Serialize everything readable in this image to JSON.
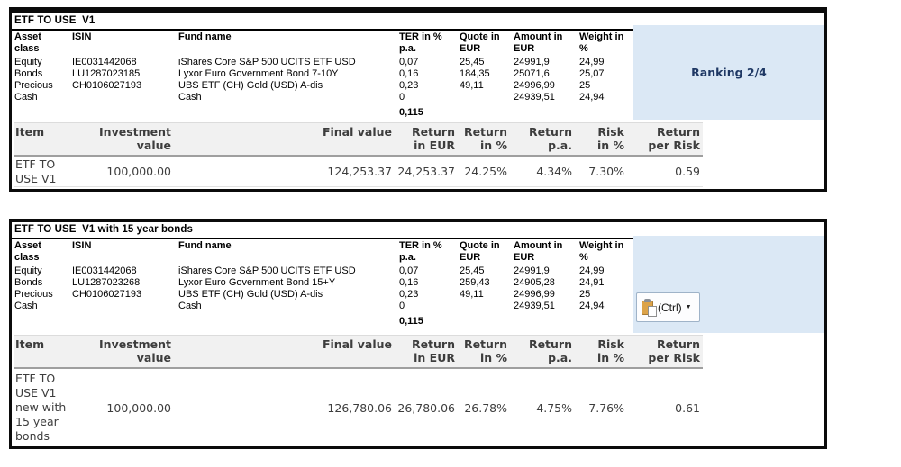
{
  "colors": {
    "table_border": "#0b0b0b",
    "side_panel_blue": "#dbe8f5",
    "summary_band_grey": "#f1f1f1",
    "summary_text": "#3d3d3d",
    "ranking_text": "#1f3864",
    "paste_clipboard_tan": "#dca349"
  },
  "paste_button": {
    "label": "(Ctrl)",
    "caret": "▼"
  },
  "tables": [
    {
      "title": "ETF TO USE  V1",
      "ranking_label": "Ranking 2/4",
      "asset_grid": {
        "headers": {
          "asset_class": "Asset\nclass",
          "isin": "ISIN",
          "fund_name": "Fund name",
          "ter": "TER in %\np.a.",
          "quote": "Quote in\nEUR",
          "amount": "Amount in\nEUR",
          "weight": "Weight in\n%"
        },
        "rows": [
          {
            "asset_class": "Equity",
            "isin": "IE0031442068",
            "fund_name": "iShares Core S&P 500 UCITS ETF USD",
            "ter": "0,07",
            "quote": "25,45",
            "amount": "24991,9",
            "weight": "24,99"
          },
          {
            "asset_class": "Bonds",
            "isin": "LU1287023185",
            "fund_name": "Lyxor Euro Government Bond 7-10Y",
            "ter": "0,16",
            "quote": "184,35",
            "amount": "25071,6",
            "weight": "25,07"
          },
          {
            "asset_class": "Precious",
            "isin": "CH0106027193",
            "fund_name": "UBS ETF (CH) Gold (USD) A-dis",
            "ter": "0,23",
            "quote": "49,11",
            "amount": "24996,99",
            "weight": "25"
          },
          {
            "asset_class": "Cash",
            "isin": "",
            "fund_name": "Cash",
            "ter": "0",
            "quote": "",
            "amount": "24939,51",
            "weight": "24,94"
          }
        ],
        "ter_sum": "0,115"
      },
      "summary": {
        "headers": {
          "item": "Item",
          "investment": "Investment\nvalue",
          "final": "Final value",
          "return_eur": "Return\nin EUR",
          "return_pct": "Return\nin %",
          "return_pa": "Return\np.a.",
          "risk": "Risk\nin %",
          "return_per_risk": "Return\nper Risk"
        },
        "row": {
          "item": "ETF TO\nUSE V1",
          "investment": "100,000.00",
          "final": "124,253.37",
          "return_eur": "24,253.37",
          "return_pct": "24.25%",
          "return_pa": "4.34%",
          "risk": "7.30%",
          "return_per_risk": "0.59"
        }
      }
    },
    {
      "title": "ETF TO USE  V1 with 15 year bonds",
      "asset_grid": {
        "headers": {
          "asset_class": "Asset\nclass",
          "isin": "ISIN",
          "fund_name": "Fund name",
          "ter": "TER in %\np.a.",
          "quote": "Quote in\nEUR",
          "amount": "Amount in\nEUR",
          "weight": "Weight in\n%"
        },
        "rows": [
          {
            "asset_class": "Equity",
            "isin": "IE0031442068",
            "fund_name": "iShares Core S&P 500 UCITS ETF USD",
            "ter": "0,07",
            "quote": "25,45",
            "amount": "24991,9",
            "weight": "24,99"
          },
          {
            "asset_class": "Bonds",
            "isin": "LU1287023268",
            "fund_name": "Lyxor Euro Government Bond 15+Y",
            "ter": "0,16",
            "quote": "259,43",
            "amount": "24905,28",
            "weight": "24,91"
          },
          {
            "asset_class": "Precious",
            "isin": "CH0106027193",
            "fund_name": "UBS ETF (CH) Gold (USD) A-dis",
            "ter": "0,23",
            "quote": "49,11",
            "amount": "24996,99",
            "weight": "25"
          },
          {
            "asset_class": "Cash",
            "isin": "",
            "fund_name": "Cash",
            "ter": "0",
            "quote": "",
            "amount": "24939,51",
            "weight": "24,94"
          }
        ],
        "ter_sum": "0,115"
      },
      "summary": {
        "headers": {
          "item": "Item",
          "investment": "Investment\nvalue",
          "final": "Final value",
          "return_eur": "Return\nin EUR",
          "return_pct": "Return\nin %",
          "return_pa": "Return\np.a.",
          "risk": "Risk\nin %",
          "return_per_risk": "Return\nper Risk"
        },
        "row": {
          "item": "ETF TO\nUSE V1\nnew with\n15 year\nbonds",
          "investment": "100,000.00",
          "final": "126,780.06",
          "return_eur": "26,780.06",
          "return_pct": "26.78%",
          "return_pa": "4.75%",
          "risk": "7.76%",
          "return_per_risk": "0.61"
        }
      }
    }
  ]
}
